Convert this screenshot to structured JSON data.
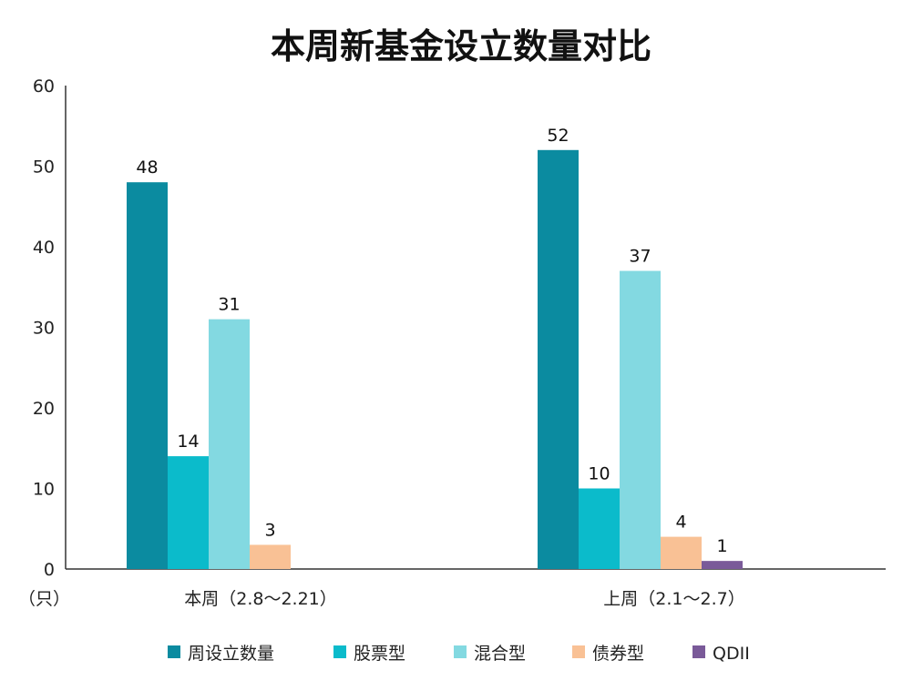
{
  "chart_data": {
    "type": "bar",
    "title": "本周新基金设立数量对比",
    "unit_label": "（只）",
    "categories": [
      "本周（2.8～2.21）",
      "上周（2.1～2.7）"
    ],
    "series": [
      {
        "name": "周设立数量",
        "color": "#0B8BA0",
        "values": [
          48,
          52
        ]
      },
      {
        "name": "股票型",
        "color": "#0BBBCB",
        "values": [
          14,
          10
        ]
      },
      {
        "name": "混合型",
        "color": "#83D9E1",
        "values": [
          31,
          37
        ]
      },
      {
        "name": "债券型",
        "color": "#F9C195",
        "values": [
          3,
          4
        ]
      },
      {
        "name": "QDII",
        "color": "#7A5A99",
        "values": [
          null,
          1
        ]
      }
    ],
    "ylim": [
      0,
      60
    ],
    "yticks": [
      0,
      10,
      20,
      30,
      40,
      50,
      60
    ],
    "legend_position": "bottom",
    "grid": false
  }
}
